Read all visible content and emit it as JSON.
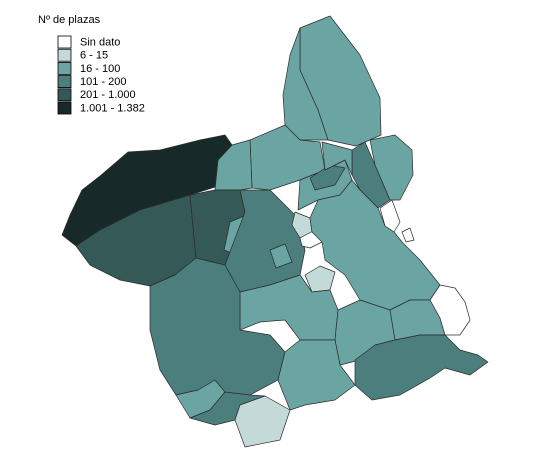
{
  "legend": {
    "title": "Nº de plazas",
    "items": [
      {
        "label": "Sin dato",
        "color": "#ffffff"
      },
      {
        "label": "6 - 15",
        "color": "#c4dad9"
      },
      {
        "label": "16 - 100",
        "color": "#6ba5a3"
      },
      {
        "label": "101 - 200",
        "color": "#4b7e7d"
      },
      {
        "label": "201 - 1.000",
        "color": "#355957"
      },
      {
        "label": "1.001 - 1.382",
        "color": "#172a29"
      }
    ]
  }
}
